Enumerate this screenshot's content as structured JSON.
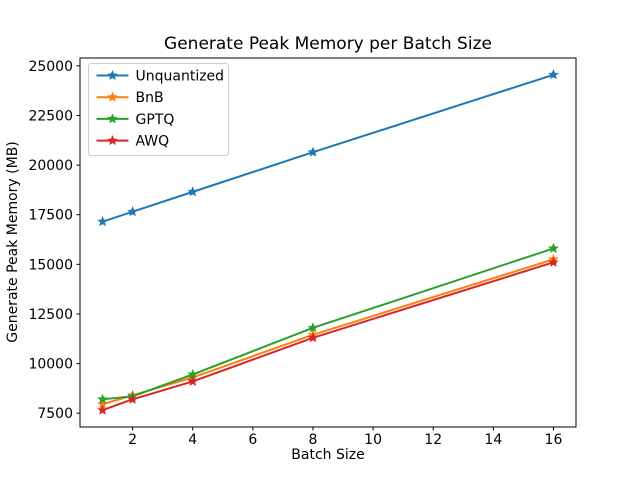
{
  "title": "Generate Peak Memory per Batch Size",
  "chart_data": {
    "type": "line",
    "x": [
      1,
      2,
      4,
      8,
      16
    ],
    "series": [
      {
        "name": "Unquantized",
        "color": "#1f77b4",
        "values": [
          17150,
          17650,
          18650,
          20650,
          24550
        ]
      },
      {
        "name": "BnB",
        "color": "#ff7f0e",
        "values": [
          7950,
          8400,
          9300,
          11450,
          15250
        ]
      },
      {
        "name": "GPTQ",
        "color": "#2ca02c",
        "values": [
          8200,
          8350,
          9450,
          11800,
          15800
        ]
      },
      {
        "name": "AWQ",
        "color": "#d62728",
        "values": [
          7650,
          8200,
          9100,
          11300,
          15100
        ]
      }
    ],
    "xlabel": "Batch Size",
    "ylabel": "Generate Peak Memory (MB)",
    "xticks": [
      2,
      4,
      6,
      8,
      10,
      12,
      14,
      16
    ],
    "yticks": [
      7500,
      10000,
      12500,
      15000,
      17500,
      20000,
      22500,
      25000
    ],
    "xlim": [
      0.25,
      16.75
    ],
    "ylim": [
      6805,
      25395
    ],
    "marker": "star",
    "grid": false,
    "legend_position": "upper left",
    "axis_color": "#000000",
    "background_color": "#ffffff"
  }
}
